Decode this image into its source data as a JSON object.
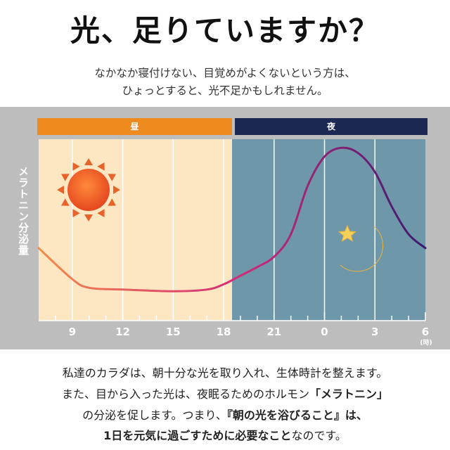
{
  "header": {
    "title": "光、足りていますか？",
    "lead_line1": "なかなか寝付けない、目覚めがよくないという方は、",
    "lead_line2": "ひょっとすると、光不足かもしれません。"
  },
  "chart_data": {
    "type": "line",
    "title": "",
    "ylabel": "メラトニン分泌量",
    "xlabel": "",
    "x_unit": "(時)",
    "period_labels": {
      "day": "昼",
      "night": "夜"
    },
    "x_tick_labels": [
      "9",
      "12",
      "15",
      "18",
      "21",
      "0",
      "3",
      "6"
    ],
    "x_hours": [
      7,
      9,
      10,
      12,
      15,
      17,
      18,
      19,
      20,
      21,
      22,
      23,
      24,
      25,
      26,
      27,
      28,
      29,
      30
    ],
    "values": [
      0.42,
      0.24,
      0.19,
      0.18,
      0.17,
      0.18,
      0.21,
      0.26,
      0.31,
      0.37,
      0.5,
      0.78,
      0.95,
      1.0,
      0.97,
      0.86,
      0.66,
      0.5,
      0.42
    ],
    "xlim": [
      7,
      30
    ],
    "ylim": [
      0,
      1.05
    ],
    "y_ticks_shown": false,
    "grid": true,
    "colors": {
      "day_background": "#fde7c3",
      "night_background": "#6f97aa",
      "day_bar": "#ee8a1e",
      "night_bar": "#1d2754",
      "curve_start": "#f58a4a",
      "curve_mid": "#d42a78",
      "curve_end": "#3a1a6e"
    },
    "icons": {
      "day": "sun-icon",
      "night": "moon-star-icon"
    }
  },
  "footer": {
    "line1": "私達のカラダは、朝十分な光を取り入れ、生体時計を整えます。",
    "line2_a": "また、目から入った光は、夜眠るためのホルモン",
    "line2_b": "「メラトニン」",
    "line3_a": "の分泌を促します。つまり、",
    "line3_b": "『朝の光を浴びること』は、",
    "line4_a": "1日を元気に過ごすために必要なこと",
    "line4_b": "なのです。"
  }
}
